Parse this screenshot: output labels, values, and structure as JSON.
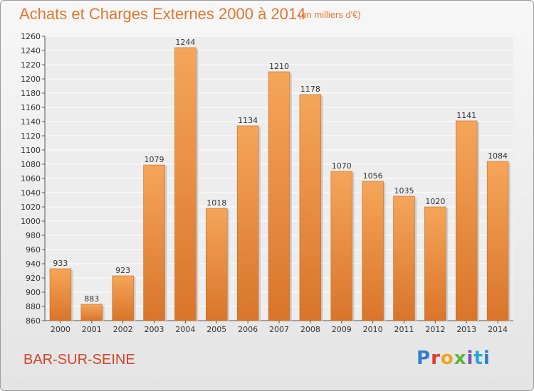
{
  "header": {
    "title": "Achats et Charges Externes 2000 à 2014",
    "subtitle": "(en milliers d'€)"
  },
  "footer": {
    "city": "BAR-SUR-SEINE",
    "logo_letters": [
      "P",
      "r",
      "o",
      "x",
      "i",
      "t",
      "i"
    ]
  },
  "colors": {
    "title": "#e0782e",
    "city": "#d0452a",
    "bar_light": "#f5a55a",
    "bar_dark": "#d9752a"
  },
  "chart_data": {
    "type": "bar",
    "title": "Achats et Charges Externes 2000 à 2014",
    "subtitle": "(en milliers d'€)",
    "categories": [
      "2000",
      "2001",
      "2002",
      "2003",
      "2004",
      "2005",
      "2006",
      "2007",
      "2008",
      "2009",
      "2010",
      "2011",
      "2012",
      "2013",
      "2014"
    ],
    "values": [
      933,
      883,
      923,
      1079,
      1244,
      1018,
      1134,
      1210,
      1178,
      1070,
      1056,
      1035,
      1020,
      1141,
      1084
    ],
    "ylim": [
      860,
      1260
    ],
    "yticks": [
      860,
      880,
      900,
      920,
      940,
      960,
      980,
      1000,
      1020,
      1040,
      1060,
      1080,
      1100,
      1120,
      1140,
      1160,
      1180,
      1200,
      1220,
      1240,
      1260
    ],
    "grid": true
  }
}
